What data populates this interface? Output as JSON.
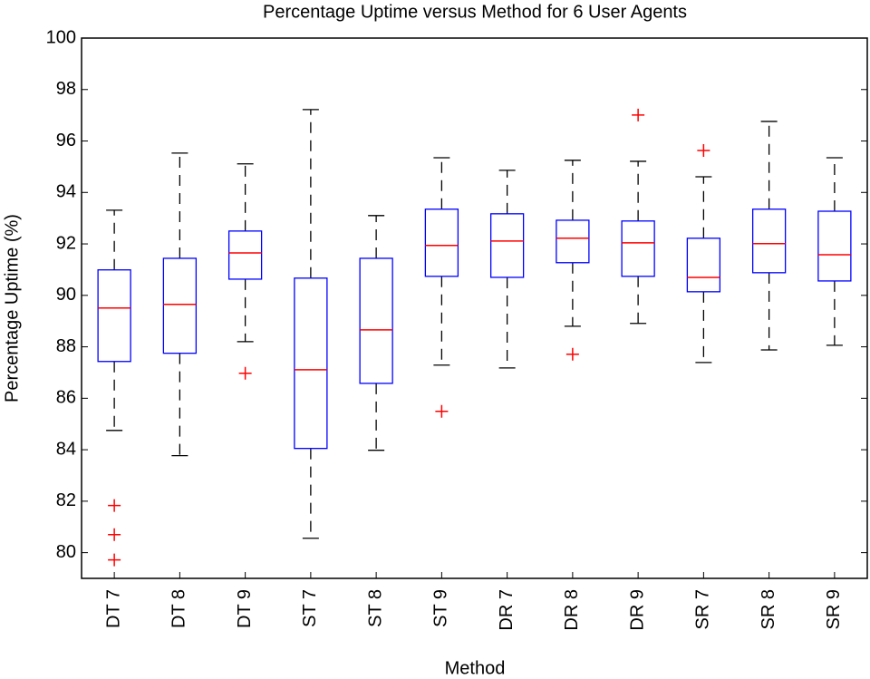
{
  "chart_data": {
    "type": "box",
    "title": "Percentage Uptime versus Method for 6 User Agents",
    "x_label": "Method",
    "y_label": "Percentage Uptime (%)",
    "categories": [
      "DT 7",
      "DT 8",
      "DT 9",
      "ST 7",
      "ST 8",
      "ST 9",
      "DR 7",
      "DR 8",
      "DR 9",
      "SR 7",
      "SR 8",
      "SR 9"
    ],
    "whisker_low": [
      84.75,
      83.77,
      88.2,
      80.56,
      83.98,
      87.29,
      87.18,
      88.8,
      88.91,
      87.39,
      87.88,
      88.06
    ],
    "q1": [
      87.43,
      87.75,
      90.63,
      84.05,
      86.58,
      90.74,
      90.7,
      91.27,
      90.74,
      90.14,
      90.88,
      90.56
    ],
    "median": [
      89.51,
      89.65,
      91.65,
      87.11,
      88.66,
      91.94,
      92.11,
      92.22,
      92.04,
      90.7,
      92.01,
      91.58
    ],
    "q3": [
      90.99,
      91.44,
      92.5,
      90.67,
      91.44,
      93.35,
      93.17,
      92.92,
      92.89,
      92.22,
      93.35,
      93.27
    ],
    "whisker_high": [
      93.31,
      95.53,
      95.11,
      97.22,
      93.1,
      95.35,
      94.86,
      95.25,
      95.21,
      94.61,
      96.76,
      95.35
    ],
    "outliers": [
      [
        81.83,
        80.7,
        79.72
      ],
      [],
      [
        86.97
      ],
      [],
      [],
      [
        85.49
      ],
      [],
      [
        87.71
      ],
      [
        97.01
      ],
      [
        95.63
      ],
      [],
      []
    ],
    "box_color": "#0000ff",
    "median_color": "#ff0000",
    "whisker_color": "#000000",
    "outlier_color": "#ff0000",
    "ylim": [
      79,
      100
    ],
    "yticks": [
      80,
      82,
      84,
      86,
      88,
      90,
      92,
      94,
      96,
      98,
      100
    ]
  }
}
